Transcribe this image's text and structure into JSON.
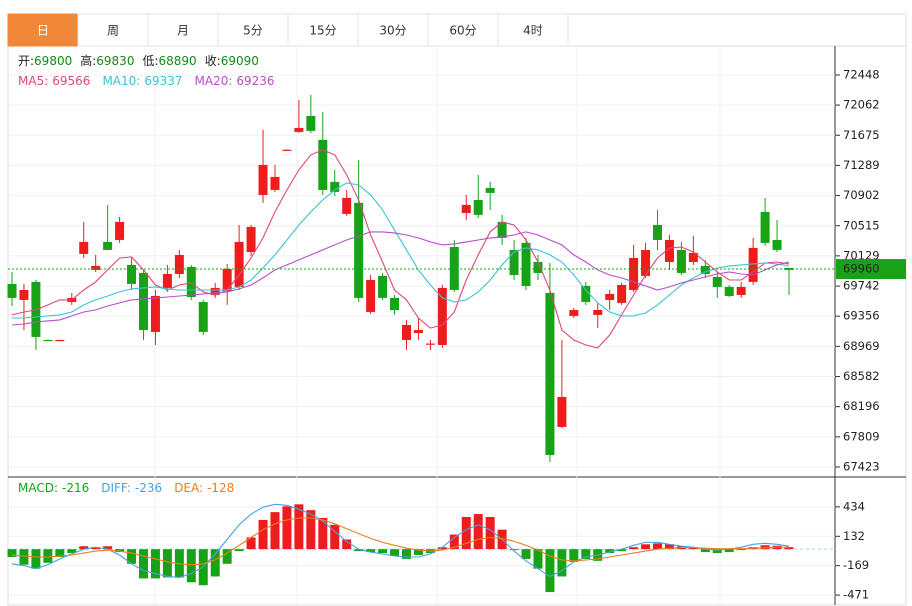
{
  "tabs": {
    "items": [
      "日",
      "周",
      "月",
      "5分",
      "15分",
      "30分",
      "60分",
      "4时"
    ],
    "active": 0
  },
  "chart_data": [
    {
      "type": "candlestick",
      "ohlc_labels": [
        {
          "label": "开:",
          "value": 69800
        },
        {
          "label": "高:",
          "value": 69830
        },
        {
          "label": "低:",
          "value": 68890
        },
        {
          "label": "收:",
          "value": 69090
        }
      ],
      "up_color": "#ee1c1c",
      "down_color": "#16a416",
      "ylim": [
        67320,
        72768
      ],
      "yticks": [
        72448,
        72062,
        71675,
        71289,
        70902,
        70515,
        70129,
        69742,
        69356,
        68969,
        68582,
        68196,
        67809,
        67423
      ],
      "grid": true,
      "last_price": 69960,
      "last_price_color": "#16a416",
      "open": [
        69769,
        69564,
        69795,
        69051,
        69051,
        69538,
        70154,
        69949,
        70308,
        70333,
        70013,
        69910,
        69154,
        69718,
        69897,
        69987,
        69538,
        69628,
        69679,
        69731,
        70179,
        70910,
        70974,
        71480,
        71718,
        71923,
        71615,
        71077,
        70667,
        70808,
        69410,
        69872,
        69590,
        69051,
        69141,
        69000,
        68987,
        70243,
        70679,
        70845,
        71000,
        70564,
        70205,
        70295,
        70051,
        69654,
        67936,
        69359,
        69743,
        69372,
        69564,
        69526,
        69692,
        69872,
        70525,
        70051,
        70205,
        70051,
        70000,
        69859,
        69731,
        69628,
        69795,
        70692,
        70333,
        69974
      ],
      "high": [
        69923,
        69769,
        69820,
        69060,
        69055,
        69654,
        70564,
        70141,
        70782,
        70628,
        70102,
        69949,
        69692,
        70013,
        70205,
        70013,
        69564,
        69782,
        70026,
        70525,
        70525,
        71743,
        71295,
        71495,
        72128,
        72192,
        71974,
        71230,
        70974,
        71358,
        69884,
        69910,
        69628,
        69307,
        69333,
        69051,
        69756,
        70333,
        70910,
        71166,
        71077,
        70654,
        70333,
        70359,
        70141,
        70038,
        69051,
        69461,
        69795,
        69526,
        69692,
        69782,
        70269,
        70295,
        70718,
        70397,
        70308,
        70384,
        70076,
        69923,
        69756,
        69795,
        70359,
        70872,
        70589,
        69974
      ],
      "low": [
        69487,
        69179,
        68923,
        69040,
        69045,
        69500,
        70102,
        69923,
        70200,
        70295,
        69692,
        69051,
        68987,
        69667,
        69846,
        69564,
        69115,
        69590,
        69500,
        69692,
        70128,
        70808,
        70949,
        71475,
        71705,
        71705,
        70910,
        70897,
        70641,
        69538,
        69385,
        69564,
        69372,
        68923,
        69051,
        68923,
        68949,
        69667,
        70589,
        70615,
        70718,
        70269,
        69820,
        69692,
        69820,
        67487,
        67923,
        69333,
        69500,
        69205,
        69435,
        69500,
        69667,
        69846,
        70205,
        69949,
        69884,
        70013,
        69846,
        69590,
        69602,
        69590,
        69756,
        70256,
        70179,
        69628
      ],
      "close": [
        69590,
        69692,
        69090,
        69045,
        69051,
        69590,
        70308,
        70000,
        70205,
        70564,
        69769,
        69179,
        69615,
        69897,
        70141,
        69602,
        69154,
        69718,
        69961,
        70308,
        70500,
        71295,
        71141,
        71490,
        71769,
        71731,
        70974,
        70949,
        70872,
        69590,
        69820,
        69590,
        69435,
        69243,
        69179,
        69005,
        69718,
        69692,
        70782,
        70654,
        70936,
        70359,
        69884,
        69743,
        69910,
        67577,
        68320,
        69435,
        69538,
        69435,
        69641,
        69756,
        70102,
        70205,
        70333,
        70333,
        69910,
        70167,
        69897,
        69731,
        69615,
        69731,
        70231,
        70295,
        70205,
        69949
      ],
      "ma": [
        {
          "name": "MA5:",
          "value": 69566,
          "color": "#e2457e",
          "values": [
            69372,
            69410,
            69436,
            69500,
            69564,
            69564,
            69692,
            69795,
            69949,
            70102,
            70115,
            69949,
            69756,
            69692,
            69756,
            69782,
            69667,
            69628,
            69692,
            69884,
            70102,
            70359,
            70692,
            70974,
            71231,
            71423,
            71487,
            71423,
            71166,
            70846,
            70397,
            70051,
            69692,
            69564,
            69333,
            69205,
            69243,
            69410,
            69820,
            70141,
            70436,
            70564,
            70525,
            70333,
            70051,
            69692,
            69179,
            69051,
            68987,
            68949,
            69115,
            69372,
            69628,
            69884,
            70102,
            70231,
            70243,
            70179,
            70051,
            69923,
            69820,
            69820,
            69923,
            70038,
            70051,
            70026
          ]
        },
        {
          "name": "MA10:",
          "value": 69337,
          "color": "#3cc3d6",
          "values": [
            69333,
            69333,
            69346,
            69359,
            69372,
            69410,
            69500,
            69564,
            69615,
            69667,
            69705,
            69718,
            69731,
            69705,
            69692,
            69692,
            69692,
            69692,
            69692,
            69731,
            69820,
            69974,
            70141,
            70333,
            70525,
            70692,
            70846,
            70974,
            71064,
            71038,
            70910,
            70718,
            70461,
            70205,
            69949,
            69756,
            69590,
            69538,
            69564,
            69667,
            69820,
            70013,
            70179,
            70231,
            70205,
            70141,
            70051,
            69884,
            69692,
            69526,
            69410,
            69359,
            69359,
            69397,
            69500,
            69628,
            69756,
            69846,
            69923,
            69974,
            70000,
            70013,
            70026,
            70038,
            70026,
            70000
          ]
        },
        {
          "name": "MA20:",
          "value": 69236,
          "color": "#b64fc6",
          "values": [
            69243,
            69256,
            69282,
            69295,
            69308,
            69359,
            69410,
            69436,
            69487,
            69526,
            69564,
            69577,
            69590,
            69602,
            69615,
            69628,
            69641,
            69654,
            69667,
            69705,
            69756,
            69846,
            69949,
            70013,
            70077,
            70141,
            70205,
            70269,
            70333,
            70384,
            70436,
            70436,
            70423,
            70397,
            70359,
            70308,
            70269,
            70282,
            70308,
            70333,
            70359,
            70372,
            70397,
            70436,
            70397,
            70333,
            70269,
            70141,
            70051,
            69949,
            69884,
            69846,
            69795,
            69743,
            69692,
            69731,
            69782,
            69820,
            69859,
            69897,
            69923,
            69897,
            69884,
            69949,
            70013,
            70051
          ]
        }
      ]
    },
    {
      "type": "macd",
      "ylim": [
        -583,
        730
      ],
      "yticks": [
        434,
        132,
        -169,
        -471
      ],
      "up_color": "#ee1c1c",
      "down_color": "#16a416",
      "histogram": {
        "name": "MACD:",
        "value": -216,
        "color": "#16a416",
        "values": [
          -80,
          -160,
          -200,
          -140,
          -80,
          -40,
          30,
          20,
          30,
          -30,
          -150,
          -300,
          -300,
          -290,
          -290,
          -340,
          -370,
          -280,
          -150,
          -20,
          120,
          300,
          380,
          440,
          460,
          400,
          320,
          250,
          100,
          -20,
          -30,
          -40,
          -70,
          -100,
          -60,
          -40,
          20,
          150,
          330,
          360,
          330,
          200,
          -10,
          -100,
          -200,
          -440,
          -280,
          -130,
          -100,
          -120,
          -40,
          -20,
          20,
          50,
          60,
          50,
          30,
          20,
          -30,
          -40,
          -30,
          -10,
          20,
          40,
          35,
          20
        ]
      },
      "diff": {
        "name": "DIFF:",
        "value": -236,
        "color": "#4aa0e6",
        "values": [
          -150,
          -170,
          -200,
          -160,
          -100,
          -50,
          0,
          20,
          0,
          -60,
          -150,
          -220,
          -250,
          -280,
          -290,
          -250,
          -180,
          -50,
          100,
          250,
          360,
          430,
          460,
          450,
          410,
          360,
          290,
          180,
          80,
          0,
          -30,
          -50,
          -70,
          -80,
          -80,
          -50,
          20,
          120,
          200,
          250,
          200,
          100,
          -20,
          -120,
          -200,
          -280,
          -220,
          -130,
          -80,
          -60,
          -30,
          0,
          40,
          70,
          70,
          50,
          30,
          20,
          0,
          -10,
          0,
          20,
          50,
          60,
          50,
          30
        ]
      },
      "dea": {
        "name": "DEA:",
        "value": -128,
        "color": "#f07d1e",
        "values": [
          -60,
          -70,
          -80,
          -80,
          -70,
          -60,
          -40,
          -20,
          -10,
          -20,
          -40,
          -70,
          -100,
          -130,
          -150,
          -160,
          -150,
          -110,
          -40,
          40,
          120,
          200,
          260,
          300,
          320,
          320,
          300,
          260,
          210,
          160,
          110,
          70,
          40,
          10,
          -10,
          -20,
          -10,
          20,
          60,
          100,
          120,
          110,
          80,
          40,
          -10,
          -70,
          -110,
          -120,
          -110,
          -100,
          -80,
          -60,
          -40,
          -20,
          0,
          10,
          15,
          15,
          10,
          5,
          5,
          5,
          10,
          15,
          20,
          20
        ]
      }
    }
  ]
}
